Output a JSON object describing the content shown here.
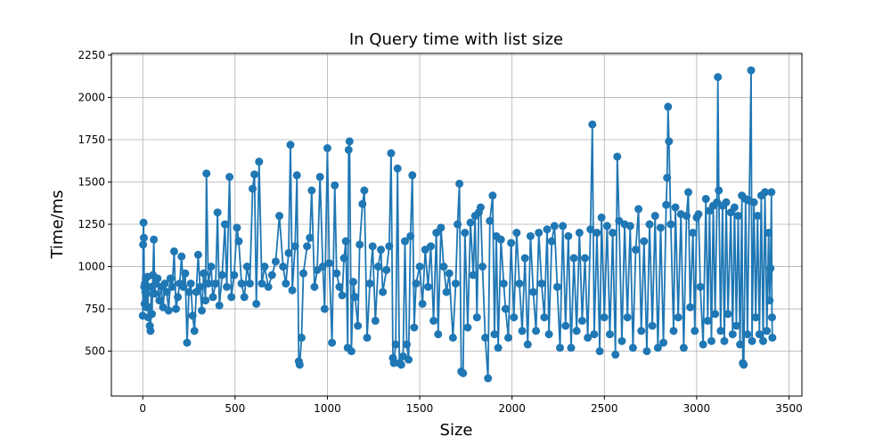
{
  "chart_data": {
    "type": "line",
    "title": "In Query time with list size",
    "xlabel": "Size",
    "ylabel": "Time/ms",
    "xlim": [
      -170,
      3570
    ],
    "ylim": [
      235,
      2260
    ],
    "xticks": [
      0,
      500,
      1000,
      1500,
      2000,
      2500,
      3000,
      3500
    ],
    "yticks": [
      500,
      750,
      1000,
      1250,
      1500,
      1750,
      2000,
      2250
    ],
    "grid": true,
    "markers": true,
    "series": [
      {
        "color": "#1f77b4",
        "points": [
          [
            0,
            710
          ],
          [
            2,
            1130
          ],
          [
            4,
            1260
          ],
          [
            6,
            1170
          ],
          [
            8,
            880
          ],
          [
            10,
            780
          ],
          [
            12,
            900
          ],
          [
            14,
            850
          ],
          [
            16,
            930
          ],
          [
            18,
            760
          ],
          [
            22,
            840
          ],
          [
            26,
            940
          ],
          [
            30,
            700
          ],
          [
            34,
            760
          ],
          [
            38,
            650
          ],
          [
            42,
            620
          ],
          [
            46,
            880
          ],
          [
            50,
            720
          ],
          [
            55,
            950
          ],
          [
            60,
            1160
          ],
          [
            65,
            840
          ],
          [
            70,
            900
          ],
          [
            80,
            930
          ],
          [
            90,
            800
          ],
          [
            100,
            880
          ],
          [
            110,
            760
          ],
          [
            120,
            900
          ],
          [
            130,
            850
          ],
          [
            140,
            740
          ],
          [
            150,
            930
          ],
          [
            160,
            880
          ],
          [
            170,
            1090
          ],
          [
            180,
            750
          ],
          [
            190,
            820
          ],
          [
            200,
            900
          ],
          [
            210,
            1060
          ],
          [
            220,
            880
          ],
          [
            230,
            960
          ],
          [
            240,
            550
          ],
          [
            250,
            850
          ],
          [
            260,
            900
          ],
          [
            270,
            710
          ],
          [
            280,
            620
          ],
          [
            290,
            850
          ],
          [
            300,
            1070
          ],
          [
            310,
            880
          ],
          [
            320,
            740
          ],
          [
            330,
            960
          ],
          [
            340,
            800
          ],
          [
            345,
            1550
          ],
          [
            355,
            900
          ],
          [
            370,
            1000
          ],
          [
            380,
            820
          ],
          [
            395,
            900
          ],
          [
            405,
            1320
          ],
          [
            415,
            770
          ],
          [
            430,
            950
          ],
          [
            445,
            1250
          ],
          [
            455,
            880
          ],
          [
            470,
            1530
          ],
          [
            480,
            820
          ],
          [
            495,
            950
          ],
          [
            510,
            1230
          ],
          [
            520,
            1150
          ],
          [
            535,
            900
          ],
          [
            550,
            820
          ],
          [
            565,
            1000
          ],
          [
            580,
            900
          ],
          [
            595,
            1460
          ],
          [
            605,
            1545
          ],
          [
            615,
            780
          ],
          [
            630,
            1620
          ],
          [
            645,
            900
          ],
          [
            660,
            1000
          ],
          [
            680,
            880
          ],
          [
            700,
            950
          ],
          [
            720,
            1030
          ],
          [
            740,
            1300
          ],
          [
            760,
            1000
          ],
          [
            775,
            900
          ],
          [
            790,
            1080
          ],
          [
            800,
            1720
          ],
          [
            810,
            860
          ],
          [
            825,
            1120
          ],
          [
            835,
            1540
          ],
          [
            845,
            440
          ],
          [
            850,
            420
          ],
          [
            860,
            580
          ],
          [
            870,
            960
          ],
          [
            890,
            1120
          ],
          [
            905,
            1170
          ],
          [
            915,
            1450
          ],
          [
            930,
            880
          ],
          [
            945,
            980
          ],
          [
            960,
            1530
          ],
          [
            975,
            1000
          ],
          [
            985,
            750
          ],
          [
            1000,
            1700
          ],
          [
            1010,
            1020
          ],
          [
            1025,
            550
          ],
          [
            1040,
            1480
          ],
          [
            1050,
            960
          ],
          [
            1065,
            880
          ],
          [
            1080,
            830
          ],
          [
            1090,
            1050
          ],
          [
            1100,
            1150
          ],
          [
            1110,
            520
          ],
          [
            1115,
            1690
          ],
          [
            1120,
            1740
          ],
          [
            1130,
            500
          ],
          [
            1140,
            910
          ],
          [
            1150,
            820
          ],
          [
            1165,
            650
          ],
          [
            1175,
            1130
          ],
          [
            1190,
            1370
          ],
          [
            1200,
            1450
          ],
          [
            1215,
            580
          ],
          [
            1230,
            900
          ],
          [
            1245,
            1120
          ],
          [
            1260,
            680
          ],
          [
            1275,
            1000
          ],
          [
            1290,
            1100
          ],
          [
            1300,
            850
          ],
          [
            1320,
            980
          ],
          [
            1335,
            1120
          ],
          [
            1345,
            1670
          ],
          [
            1355,
            460
          ],
          [
            1360,
            430
          ],
          [
            1370,
            540
          ],
          [
            1380,
            1580
          ],
          [
            1390,
            430
          ],
          [
            1400,
            420
          ],
          [
            1410,
            470
          ],
          [
            1420,
            1150
          ],
          [
            1430,
            540
          ],
          [
            1440,
            450
          ],
          [
            1450,
            1180
          ],
          [
            1460,
            1540
          ],
          [
            1470,
            640
          ],
          [
            1480,
            900
          ],
          [
            1500,
            1000
          ],
          [
            1515,
            780
          ],
          [
            1530,
            1100
          ],
          [
            1545,
            880
          ],
          [
            1560,
            1120
          ],
          [
            1575,
            680
          ],
          [
            1590,
            1200
          ],
          [
            1600,
            600
          ],
          [
            1615,
            1230
          ],
          [
            1630,
            1000
          ],
          [
            1645,
            850
          ],
          [
            1660,
            960
          ],
          [
            1680,
            580
          ],
          [
            1695,
            900
          ],
          [
            1705,
            1250
          ],
          [
            1715,
            1490
          ],
          [
            1725,
            380
          ],
          [
            1735,
            370
          ],
          [
            1745,
            1200
          ],
          [
            1760,
            640
          ],
          [
            1775,
            1260
          ],
          [
            1790,
            950
          ],
          [
            1800,
            1300
          ],
          [
            1810,
            700
          ],
          [
            1820,
            1320
          ],
          [
            1830,
            1350
          ],
          [
            1840,
            1000
          ],
          [
            1855,
            580
          ],
          [
            1870,
            340
          ],
          [
            1880,
            1270
          ],
          [
            1895,
            1420
          ],
          [
            1905,
            600
          ],
          [
            1915,
            1180
          ],
          [
            1925,
            520
          ],
          [
            1940,
            1160
          ],
          [
            1955,
            900
          ],
          [
            1965,
            750
          ],
          [
            1980,
            580
          ],
          [
            1995,
            1140
          ],
          [
            2010,
            700
          ],
          [
            2025,
            1200
          ],
          [
            2040,
            900
          ],
          [
            2055,
            620
          ],
          [
            2070,
            1050
          ],
          [
            2085,
            540
          ],
          [
            2100,
            1180
          ],
          [
            2115,
            850
          ],
          [
            2130,
            620
          ],
          [
            2145,
            1200
          ],
          [
            2160,
            900
          ],
          [
            2175,
            700
          ],
          [
            2190,
            1220
          ],
          [
            2200,
            600
          ],
          [
            2215,
            1150
          ],
          [
            2230,
            1240
          ],
          [
            2245,
            880
          ],
          [
            2260,
            520
          ],
          [
            2275,
            1240
          ],
          [
            2290,
            650
          ],
          [
            2305,
            1180
          ],
          [
            2320,
            520
          ],
          [
            2335,
            1050
          ],
          [
            2350,
            620
          ],
          [
            2365,
            1200
          ],
          [
            2380,
            680
          ],
          [
            2395,
            1050
          ],
          [
            2410,
            580
          ],
          [
            2425,
            1220
          ],
          [
            2435,
            1840
          ],
          [
            2445,
            600
          ],
          [
            2460,
            1200
          ],
          [
            2475,
            500
          ],
          [
            2485,
            1290
          ],
          [
            2500,
            700
          ],
          [
            2515,
            1240
          ],
          [
            2530,
            600
          ],
          [
            2545,
            1200
          ],
          [
            2560,
            480
          ],
          [
            2570,
            1650
          ],
          [
            2580,
            1270
          ],
          [
            2595,
            560
          ],
          [
            2610,
            1250
          ],
          [
            2625,
            700
          ],
          [
            2640,
            1240
          ],
          [
            2655,
            520
          ],
          [
            2670,
            1100
          ],
          [
            2685,
            1340
          ],
          [
            2700,
            620
          ],
          [
            2715,
            1150
          ],
          [
            2730,
            500
          ],
          [
            2745,
            1250
          ],
          [
            2760,
            650
          ],
          [
            2775,
            1300
          ],
          [
            2790,
            520
          ],
          [
            2805,
            1230
          ],
          [
            2820,
            550
          ],
          [
            2835,
            1365
          ],
          [
            2840,
            1525
          ],
          [
            2845,
            1945
          ],
          [
            2850,
            1740
          ],
          [
            2860,
            1250
          ],
          [
            2875,
            620
          ],
          [
            2885,
            1350
          ],
          [
            2900,
            700
          ],
          [
            2915,
            1310
          ],
          [
            2930,
            520
          ],
          [
            2945,
            1300
          ],
          [
            2955,
            1440
          ],
          [
            2965,
            760
          ],
          [
            2980,
            1200
          ],
          [
            2990,
            620
          ],
          [
            3000,
            1290
          ],
          [
            3010,
            1310
          ],
          [
            3020,
            880
          ],
          [
            3035,
            540
          ],
          [
            3050,
            1400
          ],
          [
            3060,
            680
          ],
          [
            3070,
            1330
          ],
          [
            3080,
            560
          ],
          [
            3090,
            1360
          ],
          [
            3100,
            720
          ],
          [
            3110,
            1380
          ],
          [
            3115,
            2120
          ],
          [
            3120,
            1450
          ],
          [
            3130,
            620
          ],
          [
            3140,
            1360
          ],
          [
            3150,
            560
          ],
          [
            3160,
            1380
          ],
          [
            3170,
            720
          ],
          [
            3185,
            1320
          ],
          [
            3195,
            600
          ],
          [
            3205,
            1350
          ],
          [
            3215,
            650
          ],
          [
            3225,
            1300
          ],
          [
            3235,
            540
          ],
          [
            3245,
            1420
          ],
          [
            3250,
            430
          ],
          [
            3255,
            420
          ],
          [
            3265,
            1400
          ],
          [
            3275,
            600
          ],
          [
            3285,
            1390
          ],
          [
            3295,
            2160
          ],
          [
            3300,
            560
          ],
          [
            3310,
            1380
          ],
          [
            3320,
            700
          ],
          [
            3330,
            1300
          ],
          [
            3340,
            600
          ],
          [
            3350,
            1420
          ],
          [
            3360,
            560
          ],
          [
            3370,
            1440
          ],
          [
            3380,
            620
          ],
          [
            3390,
            1200
          ],
          [
            3395,
            800
          ],
          [
            3400,
            990
          ],
          [
            3405,
            1440
          ],
          [
            3408,
            700
          ],
          [
            3410,
            580
          ]
        ]
      }
    ]
  }
}
